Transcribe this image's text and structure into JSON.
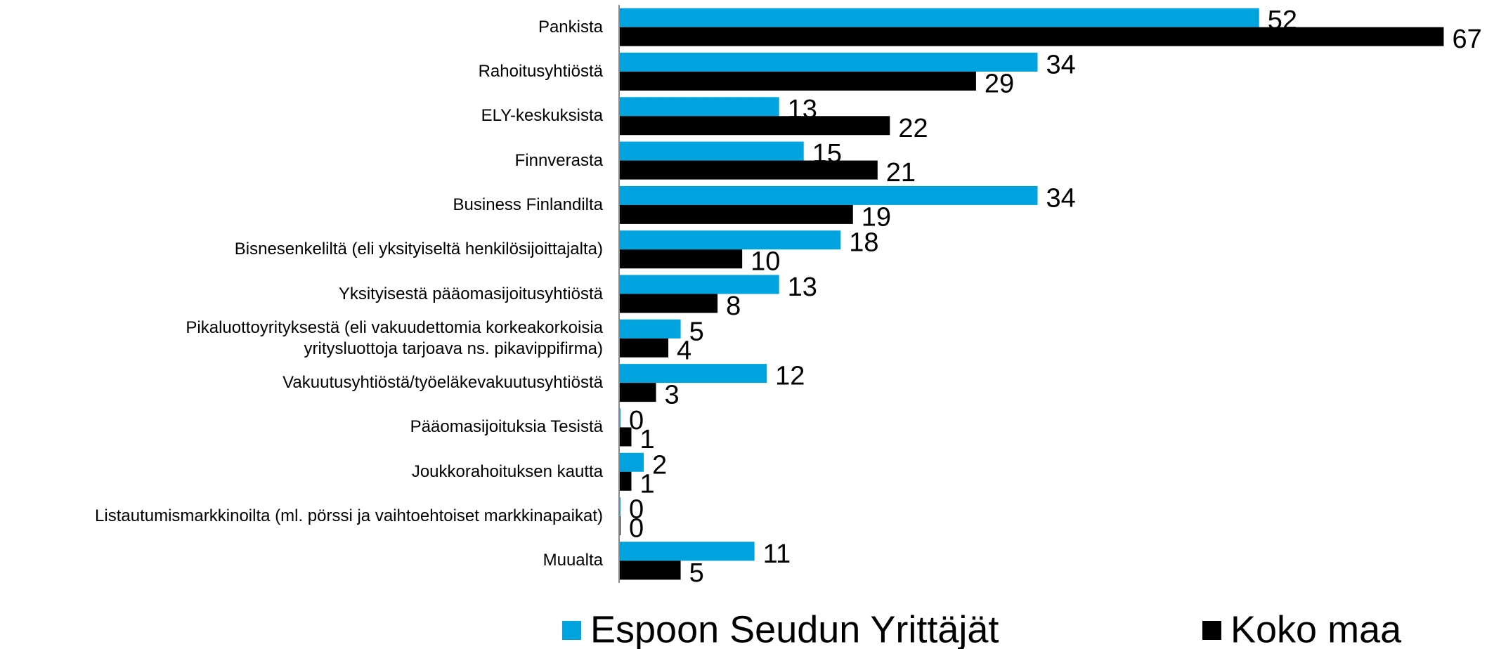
{
  "chart_data": {
    "type": "bar",
    "orientation": "horizontal",
    "categories": [
      "Pankista",
      "Rahoitusyhtiöstä",
      "ELY-keskuksista",
      "Finnverasta",
      "Business Finlandilta",
      "Bisnesenkeliltä (eli yksityiseltä henkilösijoittajalta)",
      "Yksityisestä pääomasijoitusyhtiöstä",
      "Pikaluottoyrityksestä (eli vakuudettomia korkeakorkoisia\nyritysluottoja tarjoava ns. pikavippifirma)",
      "Vakuutusyhtiöstä/työeläkevakuutusyhtiöstä",
      "Pääomasijoituksia Tesistä",
      "Joukkorahoituksen kautta",
      "Listautumismarkkinoilta (ml. pörssi ja vaihtoehtoiset markkinapaikat)",
      "Muualta"
    ],
    "series": [
      {
        "name": "Espoon Seudun Yrittäjät",
        "color": "#00a3dd",
        "values": [
          52,
          34,
          13,
          15,
          34,
          18,
          13,
          5,
          12,
          0,
          2,
          0,
          11
        ]
      },
      {
        "name": "Koko maa",
        "color": "#000000",
        "values": [
          67,
          29,
          22,
          21,
          19,
          10,
          8,
          4,
          3,
          1,
          1,
          0,
          5
        ]
      }
    ],
    "xlim": [
      0,
      70
    ],
    "legend": "bottom"
  }
}
